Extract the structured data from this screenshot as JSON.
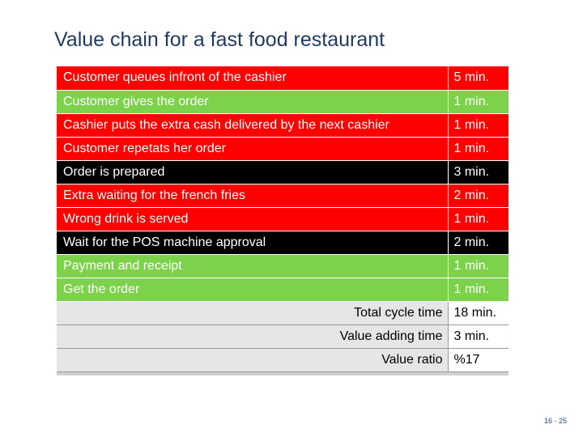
{
  "title": "Value chain for a fast food restaurant",
  "colors": {
    "waste": "#ff0000",
    "value_adding": "#7cd24a",
    "necessary_non_value": "#000000",
    "summary_bg": "#e6e6e6"
  },
  "rows": [
    {
      "step": "Customer queues infront of the cashier",
      "time": "5 min.",
      "category": "red"
    },
    {
      "step": "Customer gives the order",
      "time": "1 min.",
      "category": "green"
    },
    {
      "step": "Cashier puts the extra cash delivered by the next cashier",
      "time": "1 min.",
      "category": "red"
    },
    {
      "step": "Customer repetats her order",
      "time": "1 min.",
      "category": "red"
    },
    {
      "step": "Order is prepared",
      "time": "3 min.",
      "category": "black"
    },
    {
      "step": "Extra waiting for the french fries",
      "time": "2 min.",
      "category": "red"
    },
    {
      "step": "Wrong drink is served",
      "time": "1 min.",
      "category": "red"
    },
    {
      "step": "Wait for the POS machine approval",
      "time": "2 min.",
      "category": "black"
    },
    {
      "step": "Payment and receipt",
      "time": "1 min.",
      "category": "green"
    },
    {
      "step": "Get the order",
      "time": "1 min.",
      "category": "green"
    }
  ],
  "summary": [
    {
      "label": "Total cycle time",
      "value": "18 min."
    },
    {
      "label": "Value adding time",
      "value": "3 min."
    },
    {
      "label": "Value ratio",
      "value": "%17"
    }
  ],
  "page_number": "16 - 25"
}
